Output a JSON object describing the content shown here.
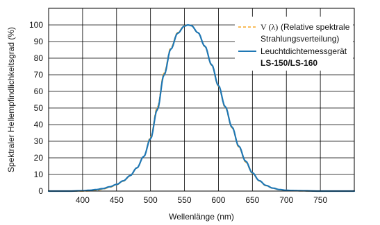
{
  "chart_data": {
    "type": "line",
    "title": "",
    "xlabel": "Wellenlänge (nm)",
    "ylabel": "Spektraler Hellempfindlichkeitsgrad (%)",
    "xlim": [
      350,
      800
    ],
    "ylim": [
      0,
      110
    ],
    "x_ticks": [
      400,
      450,
      500,
      550,
      600,
      650,
      700,
      750
    ],
    "y_ticks": [
      0,
      10,
      20,
      30,
      40,
      50,
      60,
      70,
      80,
      90,
      100
    ],
    "grid": true,
    "legend_position": "top-right",
    "legend": {
      "vlambda_symbol": "V (λ)",
      "vlambda_line1": "(Relative spektrale",
      "vlambda_line2": "Strahlungsverteilung)",
      "meter_line1": "Leuchtdichtemessgerät",
      "meter_line2": "LS-150/LS-160"
    },
    "series": [
      {
        "name": "V (λ) (Relative spektrale Strahlungsverteilung)",
        "color": "#f5a623",
        "dash": "dashed",
        "x": [
          350,
          380,
          400,
          410,
          420,
          430,
          440,
          450,
          460,
          470,
          480,
          490,
          500,
          510,
          520,
          530,
          540,
          550,
          555,
          560,
          570,
          580,
          590,
          600,
          610,
          620,
          630,
          640,
          650,
          660,
          670,
          680,
          690,
          700,
          710,
          720,
          750,
          800
        ],
        "y": [
          0,
          0,
          0,
          0.1,
          0.4,
          1.2,
          2.3,
          3.8,
          6.0,
          9.1,
          13.9,
          20.8,
          32.3,
          50.3,
          71.0,
          86.2,
          95.4,
          99.5,
          100,
          99.5,
          95.2,
          87.0,
          75.7,
          63.1,
          50.3,
          38.1,
          26.5,
          17.5,
          10.7,
          6.1,
          3.2,
          1.7,
          0.8,
          0.4,
          0.2,
          0.1,
          0,
          0
        ]
      },
      {
        "name": "Leuchtdichtemessgerät LS-150/LS-160",
        "color": "#1f77b4",
        "dash": "solid",
        "x": [
          350,
          380,
          400,
          410,
          420,
          430,
          440,
          450,
          460,
          470,
          480,
          490,
          500,
          510,
          520,
          530,
          540,
          550,
          555,
          560,
          570,
          580,
          590,
          600,
          610,
          620,
          630,
          640,
          650,
          660,
          670,
          680,
          690,
          700,
          710,
          720,
          750,
          800
        ],
        "y": [
          0,
          0,
          0.2,
          0.5,
          0.9,
          1.5,
          2.6,
          4.0,
          6.2,
          9.3,
          14.0,
          20.8,
          31.5,
          49.0,
          70.0,
          85.5,
          95.0,
          99.3,
          100,
          99.6,
          95.3,
          87.2,
          76.0,
          63.5,
          50.8,
          38.5,
          27.0,
          18.0,
          11.0,
          6.3,
          3.4,
          1.8,
          0.9,
          0.5,
          0.3,
          0.2,
          0,
          0
        ]
      }
    ]
  }
}
